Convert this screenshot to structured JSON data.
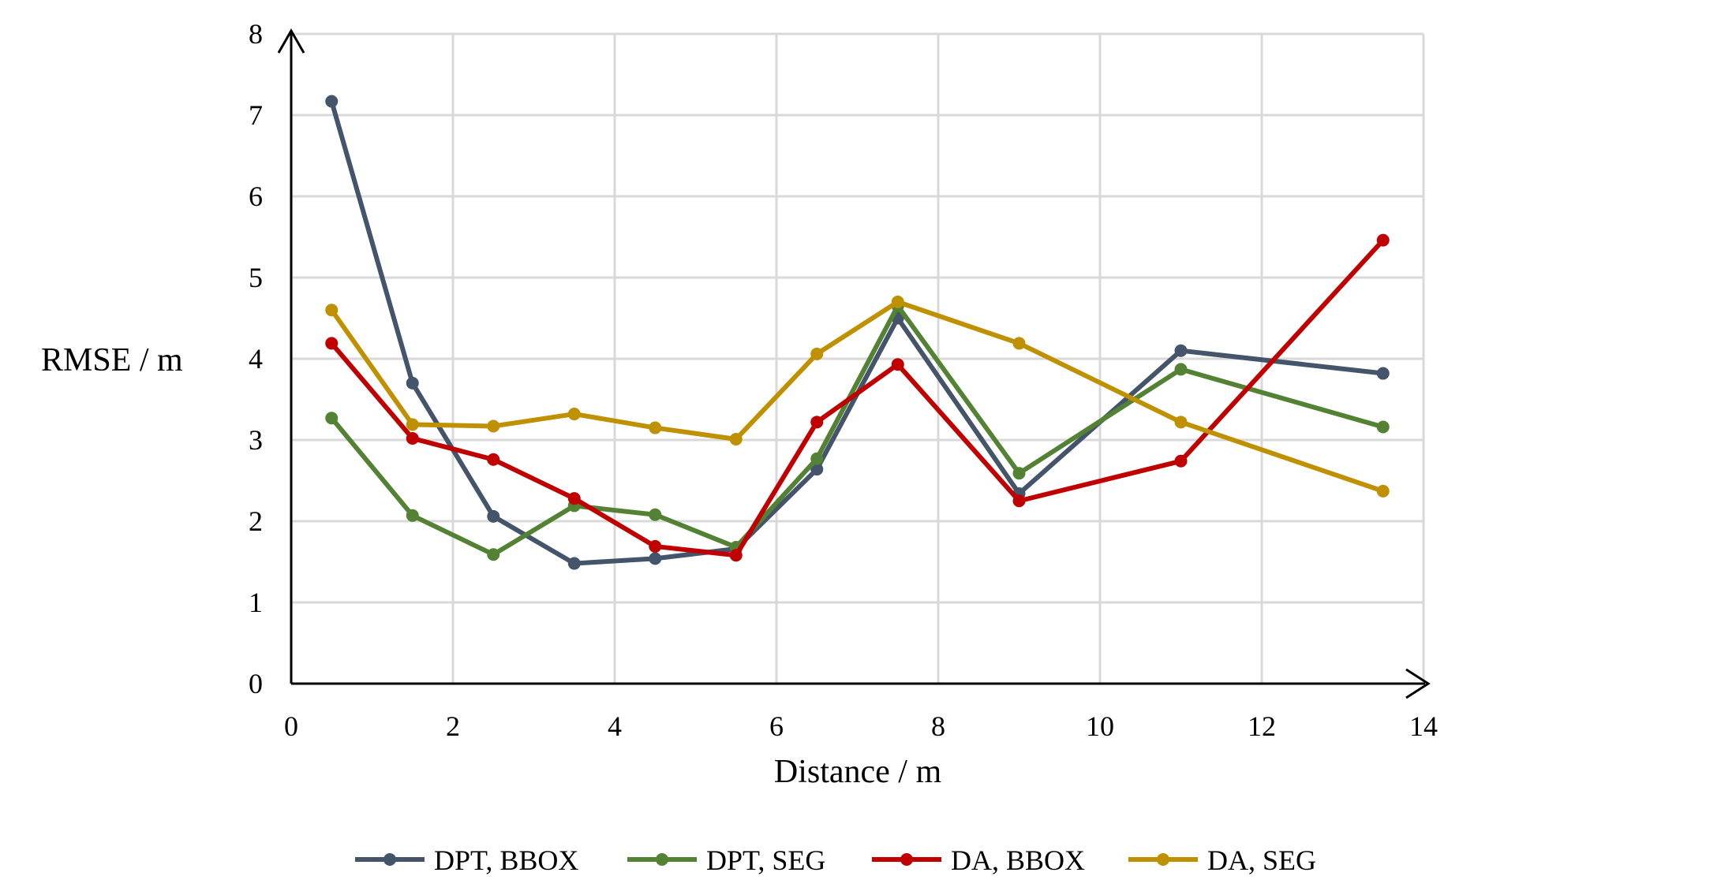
{
  "chart_data": {
    "type": "line",
    "title": "",
    "xlabel": "Distance / m",
    "ylabel": "RMSE / m",
    "xlim": [
      0,
      14
    ],
    "ylim": [
      0,
      8
    ],
    "x_ticks": [
      0,
      2,
      4,
      6,
      8,
      10,
      12,
      14
    ],
    "y_ticks": [
      0,
      1,
      2,
      3,
      4,
      5,
      6,
      7,
      8
    ],
    "grid": true,
    "legend_position": "bottom",
    "x": [
      0.5,
      1.5,
      2.5,
      3.5,
      4.5,
      5.5,
      6.5,
      7.5,
      9,
      11,
      13.5
    ],
    "series": [
      {
        "name": "DPT, BBOX",
        "color": "#44546A",
        "values": [
          7.17,
          3.7,
          2.06,
          1.48,
          1.54,
          1.66,
          2.64,
          4.5,
          2.34,
          4.1,
          3.82
        ]
      },
      {
        "name": "DPT, SEG",
        "color": "#548235",
        "values": [
          3.27,
          2.07,
          1.59,
          2.19,
          2.08,
          1.68,
          2.77,
          4.65,
          2.59,
          3.87,
          3.16
        ]
      },
      {
        "name": "DA, BBOX",
        "color": "#C00000",
        "values": [
          4.19,
          3.02,
          2.76,
          2.28,
          1.69,
          1.58,
          3.22,
          3.93,
          2.25,
          2.74,
          5.46
        ]
      },
      {
        "name": "DA, SEG",
        "color": "#BF9000",
        "values": [
          4.6,
          3.19,
          3.17,
          3.32,
          3.15,
          3.01,
          4.06,
          4.7,
          4.19,
          3.22,
          2.37
        ]
      }
    ]
  }
}
